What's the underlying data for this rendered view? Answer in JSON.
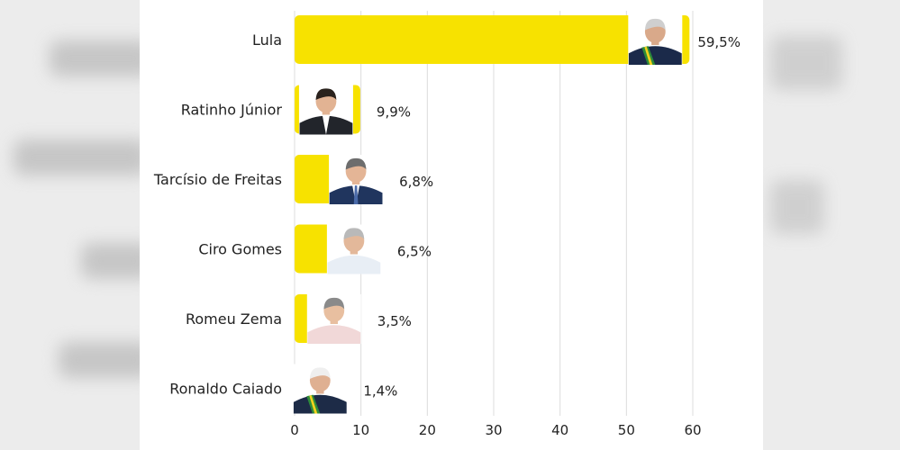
{
  "chart_data": {
    "type": "bar",
    "orientation": "horizontal",
    "categories": [
      "Lula",
      "Ratinho Júnior",
      "Tarcísio de Freitas",
      "Ciro Gomes",
      "Romeu Zema",
      "Ronaldo Caiado"
    ],
    "values": [
      59.5,
      9.9,
      6.8,
      6.5,
      3.5,
      1.4
    ],
    "value_labels": [
      "59,5%",
      "9,9%",
      "6,8%",
      "6,5%",
      "3,5%",
      "1,4%"
    ],
    "x_ticks": [
      "0",
      "10",
      "20",
      "30",
      "40",
      "50",
      "60"
    ],
    "xlim": [
      0,
      60
    ],
    "grid": true,
    "colors": {
      "bar": "#f7e200",
      "grid": "#dcdcdc",
      "photo_bg": "#ffffff"
    },
    "icons": [
      "portrait-lula",
      "portrait-ratinho-junior",
      "portrait-tarcisio-de-freitas",
      "portrait-ciro-gomes",
      "portrait-romeu-zema",
      "portrait-ronaldo-caiado"
    ]
  }
}
